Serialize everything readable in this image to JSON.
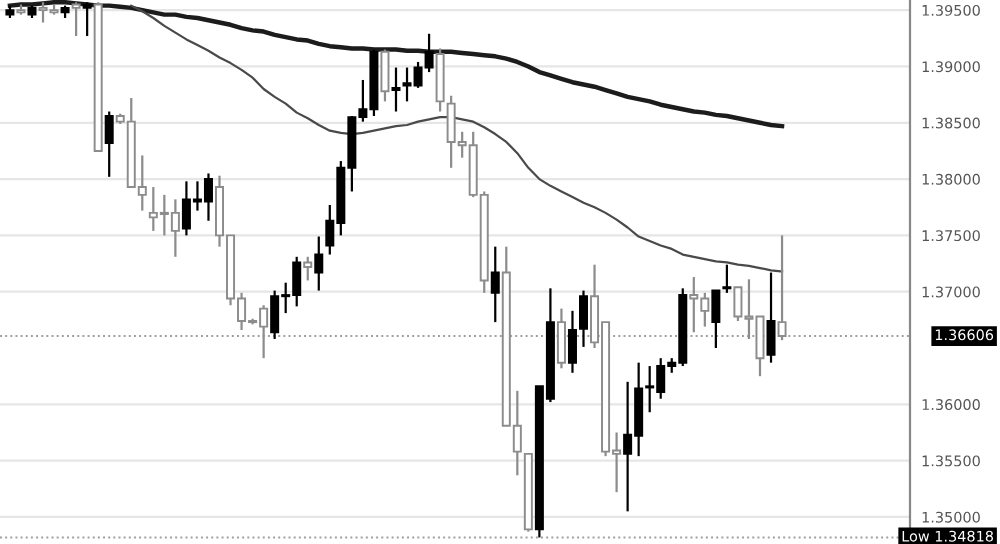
{
  "chart_data": {
    "type": "candlestick",
    "categories": [
      null,
      null,
      null,
      null,
      null,
      null,
      null,
      null,
      null,
      null,
      null,
      null,
      null,
      null,
      null,
      null,
      null,
      null,
      null,
      null,
      null,
      null,
      null,
      null,
      null,
      null,
      null,
      null,
      null,
      null,
      null,
      null,
      null,
      null,
      null,
      null,
      null,
      null,
      null,
      null,
      null,
      null,
      null,
      null,
      null,
      null,
      null,
      null,
      null,
      null,
      null,
      null,
      null,
      null,
      null,
      null,
      null,
      null,
      null,
      null,
      null,
      null,
      null,
      null,
      null,
      null,
      null,
      null,
      null,
      null,
      null,
      null,
      null,
      null,
      null,
      null,
      null,
      null,
      null,
      null,
      null,
      null
    ],
    "ohlc": [
      [
        1.3946,
        1.3954,
        1.3943,
        1.395
      ],
      [
        1.395,
        1.3955,
        1.3946,
        1.3948
      ],
      [
        1.3946,
        1.3954,
        1.3943,
        1.3952
      ],
      [
        1.3952,
        1.3957,
        1.3939,
        1.395
      ],
      [
        1.395,
        1.3955,
        1.3946,
        1.3948
      ],
      [
        1.3948,
        1.3954,
        1.3943,
        1.3952
      ],
      [
        1.3955,
        1.3957,
        1.3927,
        1.3952
      ],
      [
        1.3952,
        1.3957,
        1.3927,
        1.3955
      ],
      [
        1.3955,
        1.3957,
        1.3825,
        1.3825
      ],
      [
        1.3832,
        1.386,
        1.3802,
        1.3856
      ],
      [
        1.3856,
        1.3858,
        1.3849,
        1.3851
      ],
      [
        1.3851,
        1.3872,
        1.3793,
        1.3793
      ],
      [
        1.3793,
        1.3821,
        1.3772,
        1.3786
      ],
      [
        1.377,
        1.3793,
        1.3754,
        1.3766
      ],
      [
        1.377,
        1.3786,
        1.375,
        1.3769
      ],
      [
        1.377,
        1.3782,
        1.3731,
        1.3754
      ],
      [
        1.3756,
        1.3798,
        1.375,
        1.3782
      ],
      [
        1.378,
        1.3798,
        1.3772,
        1.3782
      ],
      [
        1.378,
        1.3805,
        1.3763,
        1.38
      ],
      [
        1.3793,
        1.3803,
        1.374,
        1.375
      ],
      [
        1.375,
        1.375,
        1.3688,
        1.3694
      ],
      [
        1.3694,
        1.3699,
        1.3666,
        1.3674
      ],
      [
        1.3674,
        1.3676,
        1.3671,
        1.3673
      ],
      [
        1.3685,
        1.3688,
        1.3641,
        1.3669
      ],
      [
        1.3664,
        1.3701,
        1.3658,
        1.3696
      ],
      [
        1.3696,
        1.3708,
        1.3681,
        1.3697
      ],
      [
        1.3697,
        1.3731,
        1.3687,
        1.3726
      ],
      [
        1.3726,
        1.3731,
        1.371,
        1.3722
      ],
      [
        1.3717,
        1.3749,
        1.3701,
        1.3733
      ],
      [
        1.3741,
        1.3777,
        1.3733,
        1.3763
      ],
      [
        1.3761,
        1.3816,
        1.375,
        1.381
      ],
      [
        1.381,
        1.3856,
        1.3789,
        1.3855
      ],
      [
        1.3855,
        1.3888,
        1.3851,
        1.3862
      ],
      [
        1.3862,
        1.3915,
        1.3856,
        1.3913
      ],
      [
        1.3913,
        1.3915,
        1.3869,
        1.3878
      ],
      [
        1.3879,
        1.3899,
        1.386,
        1.3881
      ],
      [
        1.3883,
        1.3899,
        1.3869,
        1.3885
      ],
      [
        1.3883,
        1.3904,
        1.3881,
        1.3899
      ],
      [
        1.3899,
        1.3929,
        1.3895,
        1.3913
      ],
      [
        1.3911,
        1.3916,
        1.386,
        1.3869
      ],
      [
        1.3867,
        1.3874,
        1.381,
        1.3833
      ],
      [
        1.3833,
        1.3842,
        1.3819,
        1.383
      ],
      [
        1.383,
        1.3842,
        1.3784,
        1.3786
      ],
      [
        1.3786,
        1.3789,
        1.3699,
        1.371
      ],
      [
        1.3699,
        1.374,
        1.3673,
        1.3717
      ],
      [
        1.3717,
        1.374,
        1.3581,
        1.3581
      ],
      [
        1.3581,
        1.3612,
        1.3537,
        1.3558
      ],
      [
        1.3556,
        1.3556,
        1.3487,
        1.3489
      ],
      [
        1.3489,
        1.3616,
        1.34818,
        1.3616
      ],
      [
        1.3605,
        1.3703,
        1.3602,
        1.3673
      ],
      [
        1.3673,
        1.3685,
        1.3632,
        1.3637
      ],
      [
        1.3637,
        1.3683,
        1.3628,
        1.3666
      ],
      [
        1.3667,
        1.3701,
        1.3651,
        1.3696
      ],
      [
        1.3696,
        1.3724,
        1.365,
        1.3655
      ],
      [
        1.3673,
        1.3673,
        1.3554,
        1.3558
      ],
      [
        1.3559,
        1.3575,
        1.3522,
        1.3556
      ],
      [
        1.3556,
        1.362,
        1.3505,
        1.3573
      ],
      [
        1.3572,
        1.3637,
        1.3554,
        1.3614
      ],
      [
        1.3615,
        1.3634,
        1.3593,
        1.3616
      ],
      [
        1.3611,
        1.3641,
        1.3605,
        1.3634
      ],
      [
        1.3634,
        1.3641,
        1.3628,
        1.3637
      ],
      [
        1.3637,
        1.3703,
        1.3634,
        1.3697
      ],
      [
        1.3697,
        1.3713,
        1.3664,
        1.3694
      ],
      [
        1.3694,
        1.3699,
        1.3669,
        1.3683
      ],
      [
        1.3673,
        1.3701,
        1.365,
        1.3701
      ],
      [
        1.3703,
        1.3724,
        1.3699,
        1.3704
      ],
      [
        1.3704,
        1.3704,
        1.3674,
        1.3678
      ],
      [
        1.3678,
        1.3711,
        1.3658,
        1.3676
      ],
      [
        1.3678,
        1.3678,
        1.3625,
        1.3641
      ],
      [
        1.3644,
        1.3717,
        1.3637,
        1.3674
      ],
      [
        1.3673,
        1.375,
        1.3657,
        1.36606
      ],
      null,
      null,
      null,
      null,
      null,
      null,
      null,
      null,
      null,
      null,
      null
    ],
    "colors": [
      "#000000",
      "#ffffff",
      "#000000",
      "#ffffff",
      "#ffffff",
      "#000000",
      "#ffffff",
      "#000000",
      "#ffffff",
      "#000000",
      "#ffffff",
      "#ffffff",
      "#ffffff",
      "#ffffff",
      "#ffffff",
      "#ffffff",
      "#000000",
      "#000000",
      "#000000",
      "#ffffff",
      "#ffffff",
      "#ffffff",
      "#ffffff",
      "#ffffff",
      "#000000",
      "#000000",
      "#000000",
      "#ffffff",
      "#000000",
      "#000000",
      "#000000",
      "#000000",
      "#000000",
      "#000000",
      "#ffffff",
      "#000000",
      "#000000",
      "#000000",
      "#000000",
      "#ffffff",
      "#ffffff",
      "#ffffff",
      "#ffffff",
      "#ffffff",
      "#000000",
      "#ffffff",
      "#ffffff",
      "#ffffff",
      "#000000",
      "#000000",
      "#ffffff",
      "#000000",
      "#000000",
      "#ffffff",
      "#ffffff",
      "#ffffff",
      "#000000",
      "#000000",
      "#000000",
      "#000000",
      "#000000",
      "#000000",
      "#ffffff",
      "#ffffff",
      "#000000",
      "#000000",
      "#ffffff",
      "#ffffff",
      "#ffffff",
      "#000000",
      "#ffffff",
      null,
      null,
      null,
      null,
      null,
      null,
      null,
      null,
      null,
      null,
      null
    ],
    "series": [
      {
        "type": "line",
        "color": "#1c1c1c",
        "values": [
          1.3954,
          1.3955,
          1.3955,
          1.3956,
          1.3957,
          1.3957,
          1.3956,
          1.3955,
          1.3954,
          1.3954,
          1.3953,
          1.3952,
          1.395,
          1.3948,
          1.3946,
          1.3946,
          1.3944,
          1.3943,
          1.3941,
          1.3939,
          1.3937,
          1.3934,
          1.3932,
          1.3931,
          1.3928,
          1.3926,
          1.3924,
          1.3923,
          1.392,
          1.3918,
          1.3917,
          1.3916,
          1.3916,
          1.3915,
          1.3915,
          1.3915,
          1.3914,
          1.3914,
          1.3913,
          1.3913,
          1.3913,
          1.3912,
          1.3911,
          1.391,
          1.3909,
          1.3907,
          1.3904,
          1.39,
          1.3895,
          1.3892,
          1.3889,
          1.3886,
          1.3884,
          1.3882,
          1.3879,
          1.3876,
          1.3873,
          1.3871,
          1.3869,
          1.3866,
          1.3864,
          1.3862,
          1.386,
          1.3859,
          1.3857,
          1.3856,
          1.3854,
          1.3852,
          1.385,
          1.3848,
          1.3847,
          null,
          null,
          null,
          null,
          null,
          null,
          null,
          null,
          null,
          null,
          null
        ]
      },
      {
        "type": "line",
        "color": "#4a4a4a",
        "values": [
          null,
          null,
          null,
          null,
          null,
          null,
          null,
          null,
          null,
          null,
          null,
          1.3954,
          1.3949,
          1.3943,
          1.3936,
          1.393,
          1.3924,
          1.3919,
          1.3914,
          1.3908,
          1.3903,
          1.3897,
          1.389,
          1.388,
          1.3873,
          1.3867,
          1.3859,
          1.3854,
          1.3848,
          1.3843,
          1.3841,
          1.384,
          1.3841,
          1.3843,
          1.3845,
          1.3847,
          1.3848,
          1.3851,
          1.3853,
          1.3855,
          1.3855,
          1.3853,
          1.3851,
          1.3846,
          1.384,
          1.3833,
          1.3823,
          1.381,
          1.38,
          1.3794,
          1.3789,
          1.3784,
          1.3779,
          1.3775,
          1.377,
          1.3764,
          1.3757,
          1.3749,
          1.3745,
          1.3741,
          1.3738,
          1.3733,
          1.3731,
          1.3729,
          1.3727,
          1.3726,
          1.3724,
          1.3723,
          1.3721,
          1.3719,
          1.3718,
          null,
          null,
          null,
          null,
          null,
          null,
          null,
          null,
          null,
          null,
          null
        ]
      }
    ],
    "ylim": [
      1.3476,
      1.3959
    ],
    "yticks": [
      {
        "value": 1.35,
        "label": "1.35000"
      },
      {
        "value": 1.355,
        "label": "1.35500"
      },
      {
        "value": 1.36,
        "label": "1.36000"
      },
      {
        "value": 1.37,
        "label": "1.37000"
      },
      {
        "value": 1.375,
        "label": "1.37500"
      },
      {
        "value": 1.38,
        "label": "1.38000"
      },
      {
        "value": 1.385,
        "label": "1.38500"
      },
      {
        "value": 1.39,
        "label": "1.39000"
      },
      {
        "value": 1.395,
        "label": "1.39500"
      }
    ],
    "ref_lines": [
      {
        "axis": "y",
        "value": 1.36606,
        "label": "1.36606",
        "color": "#9e9e9e",
        "line_style": "dotted"
      },
      {
        "axis": "y",
        "value": 1.34818,
        "label": "Low 1.34818",
        "color": "#9e9e9e",
        "line_style": "dotted"
      }
    ],
    "grid": "y",
    "tick_labels": "y"
  }
}
